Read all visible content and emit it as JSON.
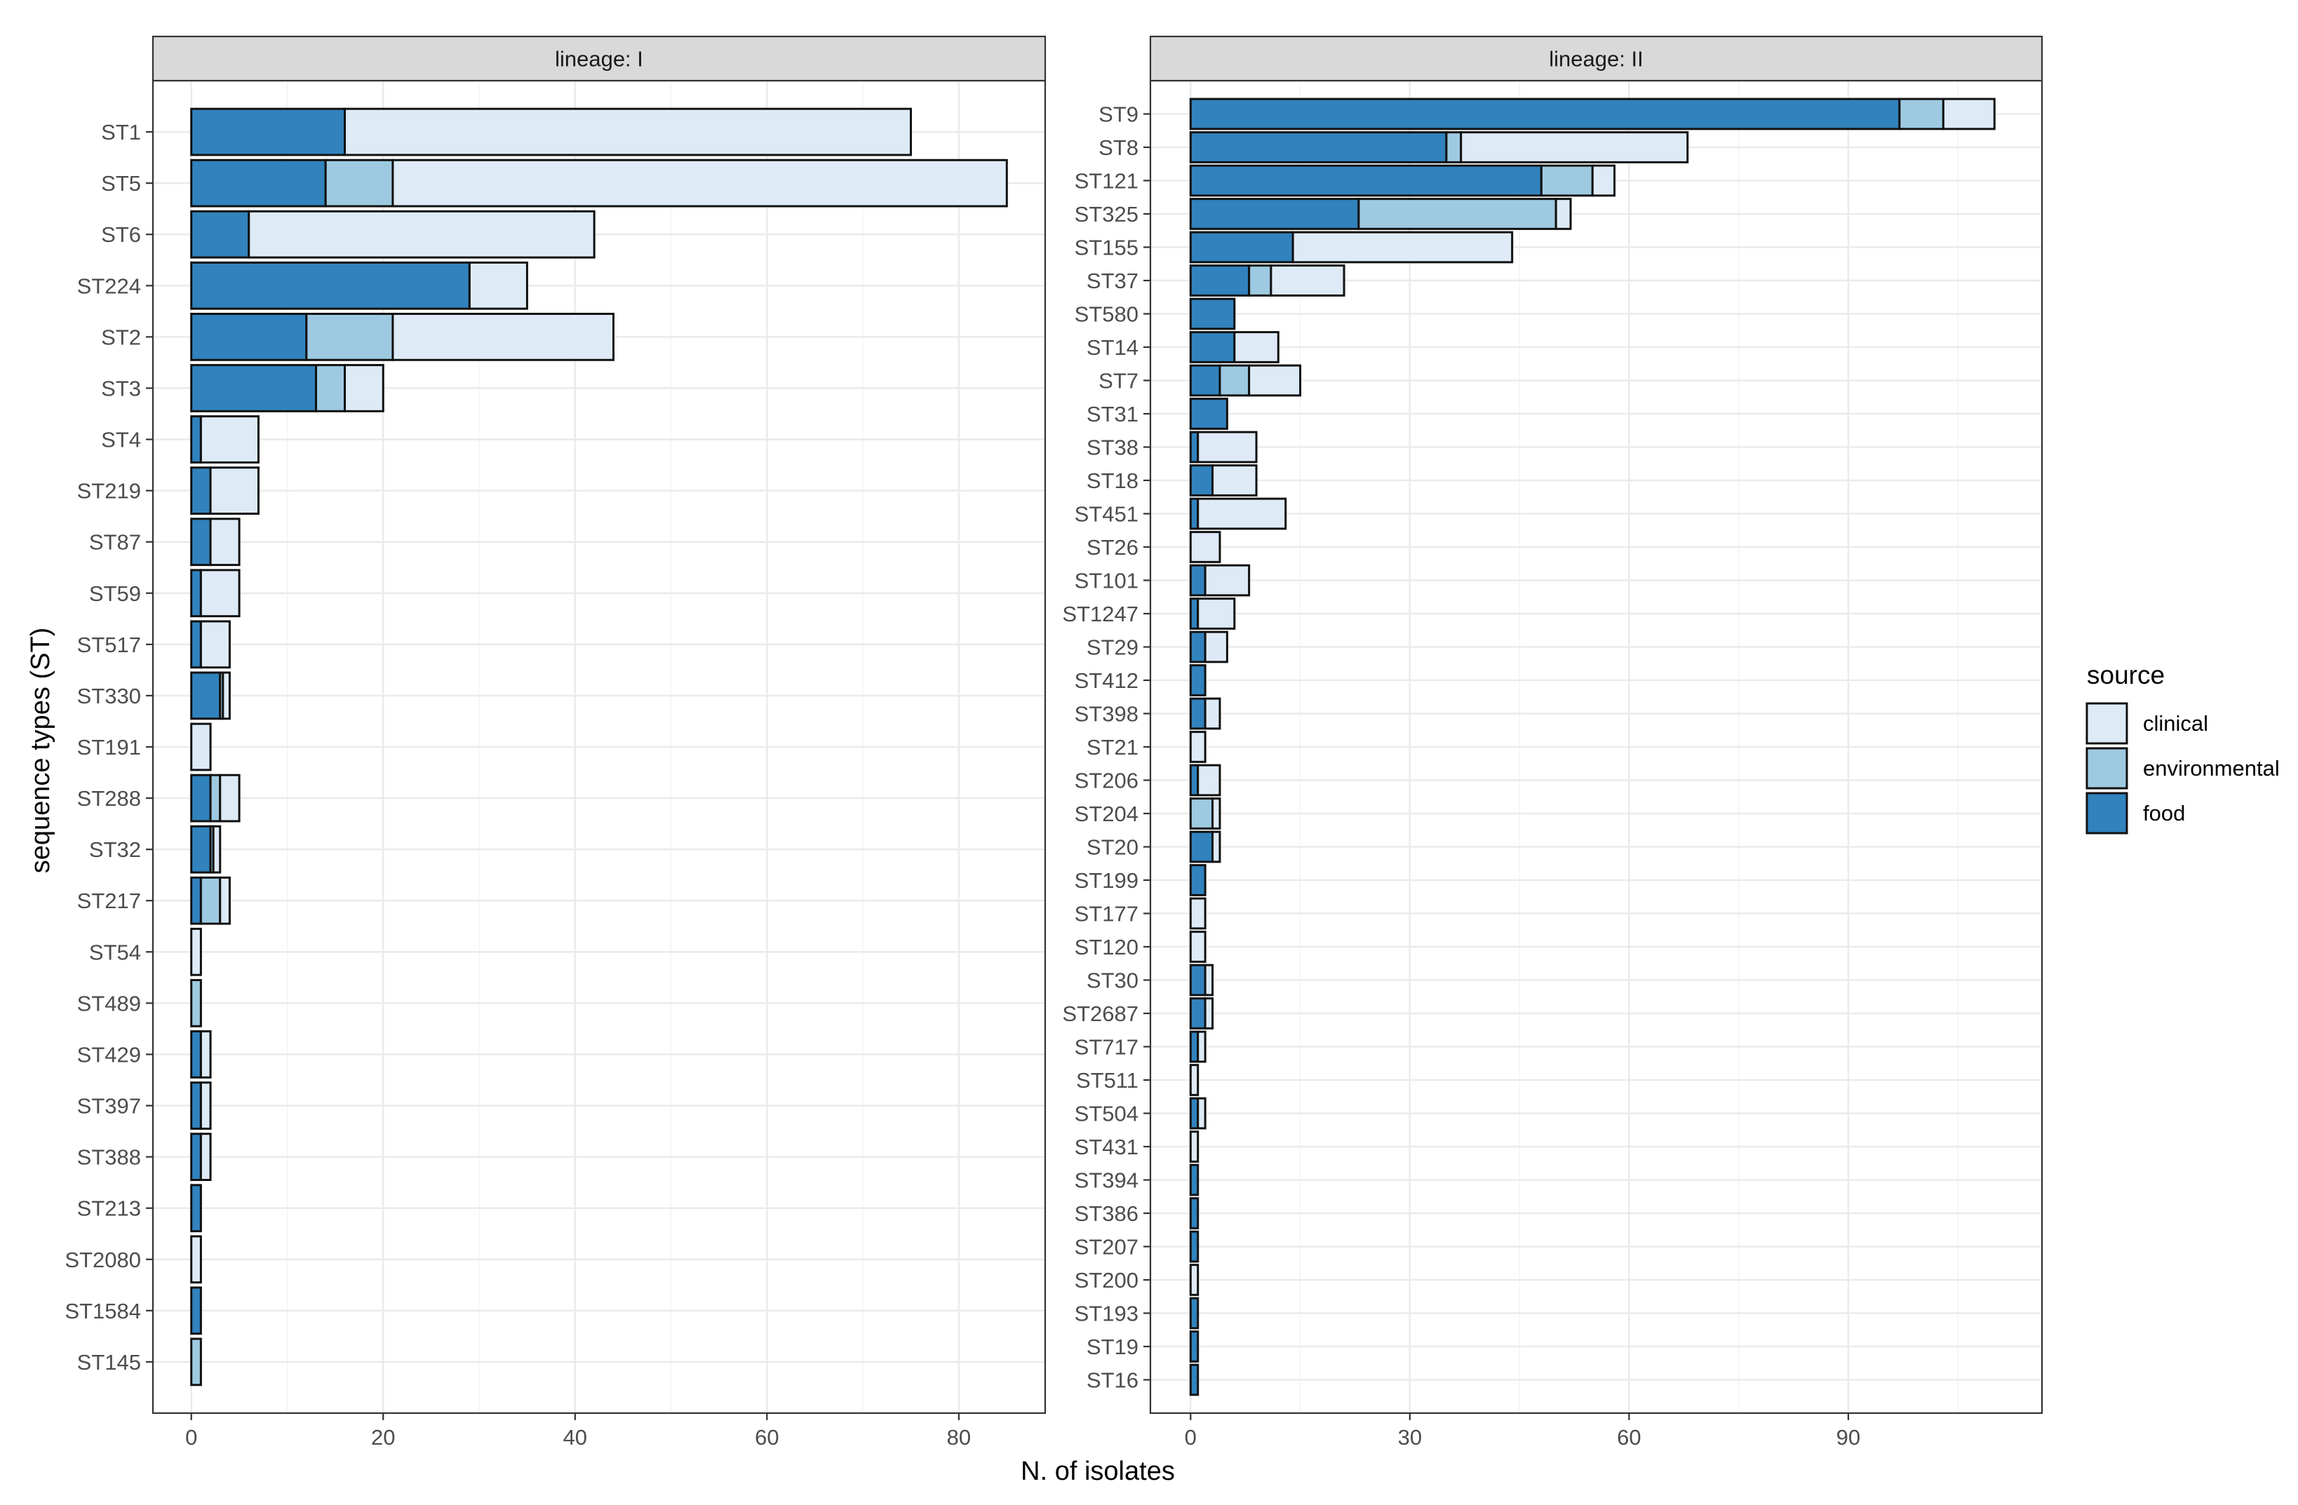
{
  "chart_data": {
    "type": "bar",
    "orientation": "horizontal",
    "stacked": true,
    "xlabel": "N. of isolates",
    "ylabel": "sequence types (ST)",
    "legend": {
      "title": "source",
      "position": "right",
      "entries": [
        {
          "name": "clinical",
          "color": "#deebf7"
        },
        {
          "name": "environmental",
          "color": "#9ecae1"
        },
        {
          "name": "food",
          "color": "#3182bd"
        }
      ]
    },
    "stack_order": [
      "food",
      "environmental",
      "clinical"
    ],
    "panels": [
      {
        "strip_label": "lineage: I",
        "xlim": [
          -4,
          89
        ],
        "xticks": [
          0,
          20,
          40,
          60,
          80
        ],
        "tick_labels": [
          "0",
          "20",
          "40",
          "60",
          "80"
        ],
        "categories": [
          "ST1",
          "ST5",
          "ST6",
          "ST224",
          "ST2",
          "ST3",
          "ST4",
          "ST219",
          "ST87",
          "ST59",
          "ST517",
          "ST330",
          "ST191",
          "ST288",
          "ST32",
          "ST217",
          "ST54",
          "ST489",
          "ST429",
          "ST397",
          "ST388",
          "ST213",
          "ST2080",
          "ST1584",
          "ST145"
        ],
        "series": [
          {
            "name": "food",
            "values": [
              16,
              14,
              6,
              29,
              12,
              13,
              1,
              2,
              2,
              1,
              1,
              3,
              0,
              2,
              2,
              1,
              0,
              0,
              1,
              1,
              1,
              1,
              0,
              1,
              0
            ]
          },
          {
            "name": "environmental",
            "values": [
              0,
              7,
              0,
              0,
              9,
              3,
              0,
              0,
              0,
              0,
              0,
              0.3,
              0,
              1,
              0.3,
              2,
              0,
              1,
              0,
              0,
              0,
              0,
              0,
              0,
              1
            ]
          },
          {
            "name": "clinical",
            "values": [
              59,
              64,
              36,
              6,
              23,
              4,
              6,
              5,
              3,
              4,
              3,
              0.7,
              2,
              2,
              0.7,
              1,
              1,
              0,
              1,
              1,
              1,
              0,
              1,
              0,
              0
            ]
          }
        ]
      },
      {
        "strip_label": "lineage: II",
        "xlim": [
          -5.5,
          116.5
        ],
        "xticks": [
          0,
          30,
          60,
          90
        ],
        "tick_labels": [
          "0",
          "30",
          "60",
          "90"
        ],
        "categories": [
          "ST9",
          "ST8",
          "ST121",
          "ST325",
          "ST155",
          "ST37",
          "ST580",
          "ST14",
          "ST7",
          "ST31",
          "ST38",
          "ST18",
          "ST451",
          "ST26",
          "ST101",
          "ST1247",
          "ST29",
          "ST412",
          "ST398",
          "ST21",
          "ST206",
          "ST204",
          "ST20",
          "ST199",
          "ST177",
          "ST120",
          "ST30",
          "ST2687",
          "ST717",
          "ST511",
          "ST504",
          "ST431",
          "ST394",
          "ST386",
          "ST207",
          "ST200",
          "ST193",
          "ST19",
          "ST16"
        ],
        "series": [
          {
            "name": "food",
            "values": [
              97,
              35,
              48,
              23,
              14,
              8,
              6,
              6,
              4,
              5,
              1,
              3,
              1,
              0,
              2,
              1,
              2,
              2,
              2,
              0,
              1,
              0,
              3,
              2,
              0,
              0,
              2,
              2,
              1,
              0,
              1,
              0,
              1,
              1,
              1,
              0,
              1,
              1,
              1
            ]
          },
          {
            "name": "environmental",
            "values": [
              6,
              2,
              7,
              27,
              0,
              3,
              0,
              0,
              4,
              0,
              0,
              0,
              0,
              0,
              0,
              0,
              0,
              0,
              0,
              0,
              0,
              3,
              0,
              0,
              0,
              0,
              0,
              0,
              0,
              0,
              0,
              0,
              0,
              0,
              0,
              0,
              0,
              0,
              0
            ]
          },
          {
            "name": "clinical",
            "values": [
              7,
              31,
              3,
              2,
              30,
              10,
              0,
              6,
              7,
              0,
              8,
              6,
              12,
              4,
              6,
              5,
              3,
              0,
              2,
              2,
              3,
              1,
              1,
              0,
              2,
              2,
              1,
              1,
              1,
              1,
              1,
              1,
              0,
              0,
              0,
              1,
              0,
              0,
              0
            ]
          }
        ]
      }
    ]
  }
}
